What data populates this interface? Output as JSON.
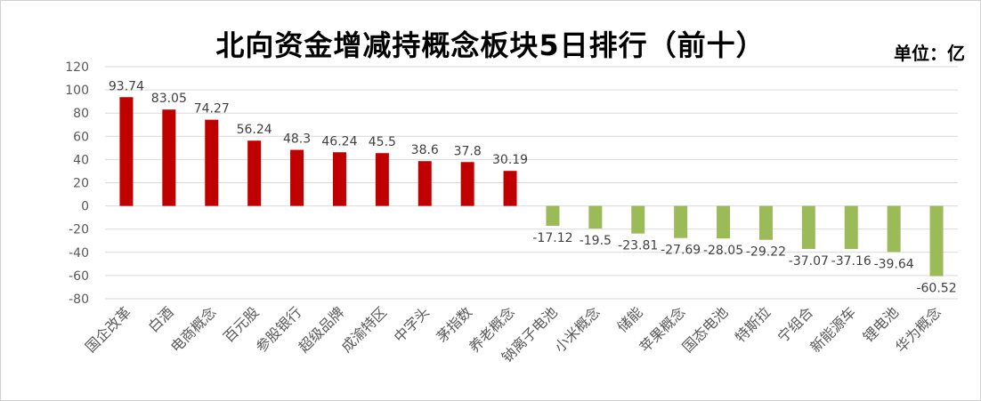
{
  "title": "北向资金增减持概念板块5日排行（前十）",
  "unit_label": "单位：亿",
  "colors": {
    "positive": "#c00000",
    "negative": "#9bbb59",
    "grid": "#d9d9d9"
  },
  "chart_data": {
    "type": "bar",
    "title": "北向资金增减持概念板块5日排行（前十）",
    "ylabel": "单位：亿",
    "ylim": [
      -80,
      120
    ],
    "yticks": [
      120,
      100,
      80,
      60,
      40,
      20,
      0,
      -20,
      -40,
      -60,
      -80
    ],
    "grid": true,
    "categories": [
      "国企改革",
      "白酒",
      "电商概念",
      "百元股",
      "参股银行",
      "超级品牌",
      "成渝特区",
      "中字头",
      "茅指数",
      "养老概念",
      "钠离子电池",
      "小米概念",
      "储能",
      "苹果概念",
      "国态电池",
      "特斯拉",
      "宁组合",
      "新能源车",
      "锂电池",
      "华为概念"
    ],
    "values": [
      93.74,
      83.05,
      74.27,
      56.24,
      48.3,
      46.24,
      45.5,
      38.6,
      37.8,
      30.19,
      -17.12,
      -19.5,
      -23.81,
      -27.69,
      -28.05,
      -29.22,
      -37.07,
      -37.16,
      -39.64,
      -60.52
    ],
    "labels": [
      "93.74",
      "83.05",
      "74.27",
      "56.24",
      "48.3",
      "46.24",
      "45.5",
      "38.6",
      "37.8",
      "30.19",
      "-17.12",
      "-19.5",
      "-23.81",
      "-27.69",
      "-28.05",
      "-29.22",
      "-37.07",
      "-37.16",
      "-39.64",
      "-60.52"
    ]
  }
}
